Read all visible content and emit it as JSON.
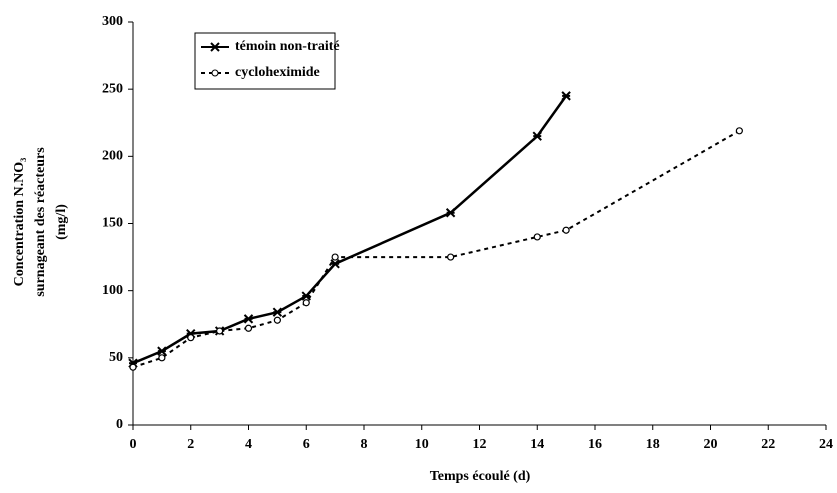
{
  "chart_data": {
    "type": "line",
    "x_label": "Temps écoulé (d)",
    "y_label": [
      "Concentration N.NO₃",
      "surnageant des réacteurs",
      "(mg/l)"
    ],
    "xlim": [
      0,
      24
    ],
    "xticks": [
      0,
      2,
      4,
      6,
      8,
      10,
      12,
      14,
      16,
      18,
      20,
      22,
      24
    ],
    "ylim": [
      0,
      300
    ],
    "yticks": [
      0,
      50,
      100,
      150,
      200,
      250,
      300
    ],
    "grid": false,
    "legend": "upper left",
    "series": [
      {
        "name": "témoin non-traité",
        "color": "#000000",
        "line_style": "solid",
        "marker": "x",
        "x": [
          0,
          1,
          2,
          3,
          4,
          5,
          6,
          7,
          11,
          14,
          15
        ],
        "values": [
          46,
          55,
          68,
          70,
          79,
          84,
          96,
          120,
          158,
          215,
          245
        ]
      },
      {
        "name": "cycloheximide",
        "color": "#000000",
        "line_style": "dashed",
        "marker": "circle",
        "x": [
          0,
          1,
          2,
          3,
          4,
          5,
          6,
          7,
          11,
          14,
          15,
          21
        ],
        "values": [
          43,
          50,
          65,
          70,
          72,
          78,
          91,
          125,
          125,
          140,
          145,
          219
        ]
      }
    ]
  }
}
